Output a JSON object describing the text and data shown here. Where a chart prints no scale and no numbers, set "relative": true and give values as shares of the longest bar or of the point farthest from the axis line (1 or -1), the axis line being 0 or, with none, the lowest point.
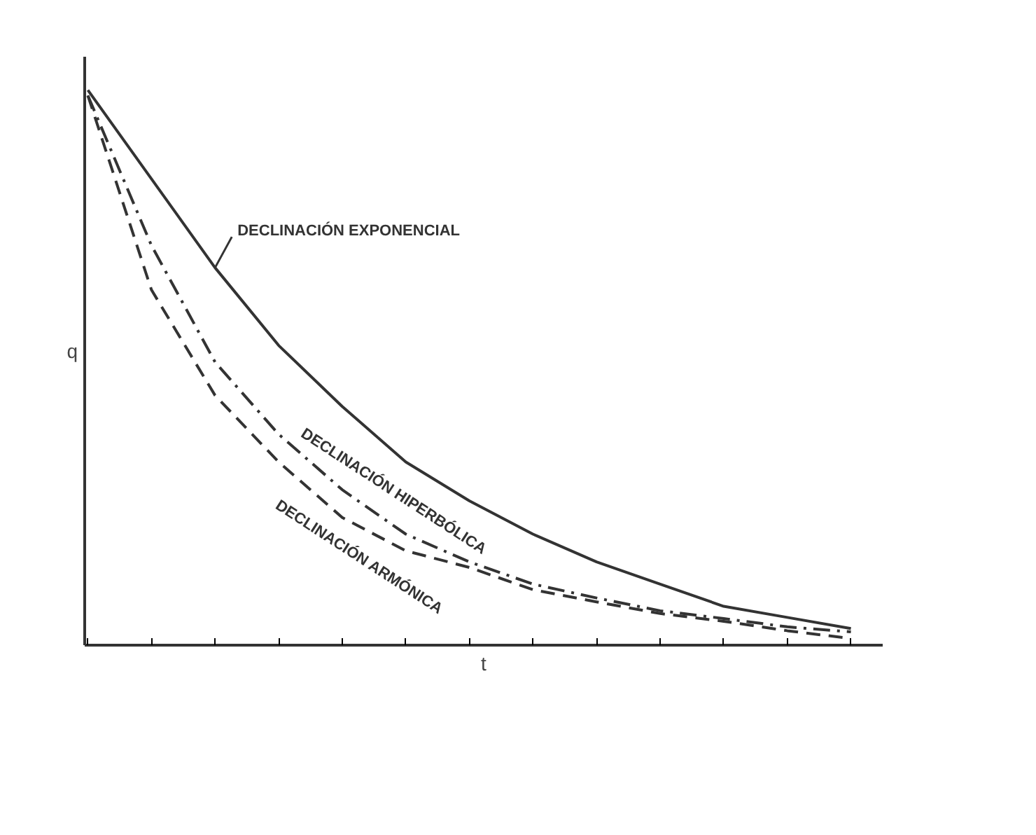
{
  "chart_data": {
    "type": "line",
    "relative": true,
    "xlabel": "t",
    "ylabel": "q",
    "categories": [
      null,
      null,
      null,
      null,
      null,
      null,
      null,
      null,
      null,
      null,
      null,
      null,
      null
    ],
    "series": [
      {
        "name": "DECLINACIÓN EXPONENCIAL",
        "color": "#333333",
        "line_style": "solid",
        "values": [
          1.0,
          0.84,
          0.68,
          0.54,
          0.43,
          0.33,
          0.26,
          0.2,
          0.15,
          0.11,
          0.07,
          0.05,
          0.03
        ]
      },
      {
        "name": "DECLINACIÓN HIPERBÓLICA",
        "color": "#333333",
        "line_style": "dashdot",
        "values": [
          0.99,
          0.72,
          0.51,
          0.38,
          0.28,
          0.2,
          0.15,
          0.11,
          0.085,
          0.062,
          0.048,
          0.033,
          0.024
        ]
      },
      {
        "name": "DECLINACIÓN ARMÓNICA",
        "color": "#333333",
        "line_style": "dashed",
        "values": [
          0.99,
          0.64,
          0.45,
          0.33,
          0.23,
          0.17,
          0.14,
          0.1,
          0.078,
          0.057,
          0.043,
          0.026,
          0.012
        ]
      }
    ],
    "grid": false,
    "legend": false
  }
}
